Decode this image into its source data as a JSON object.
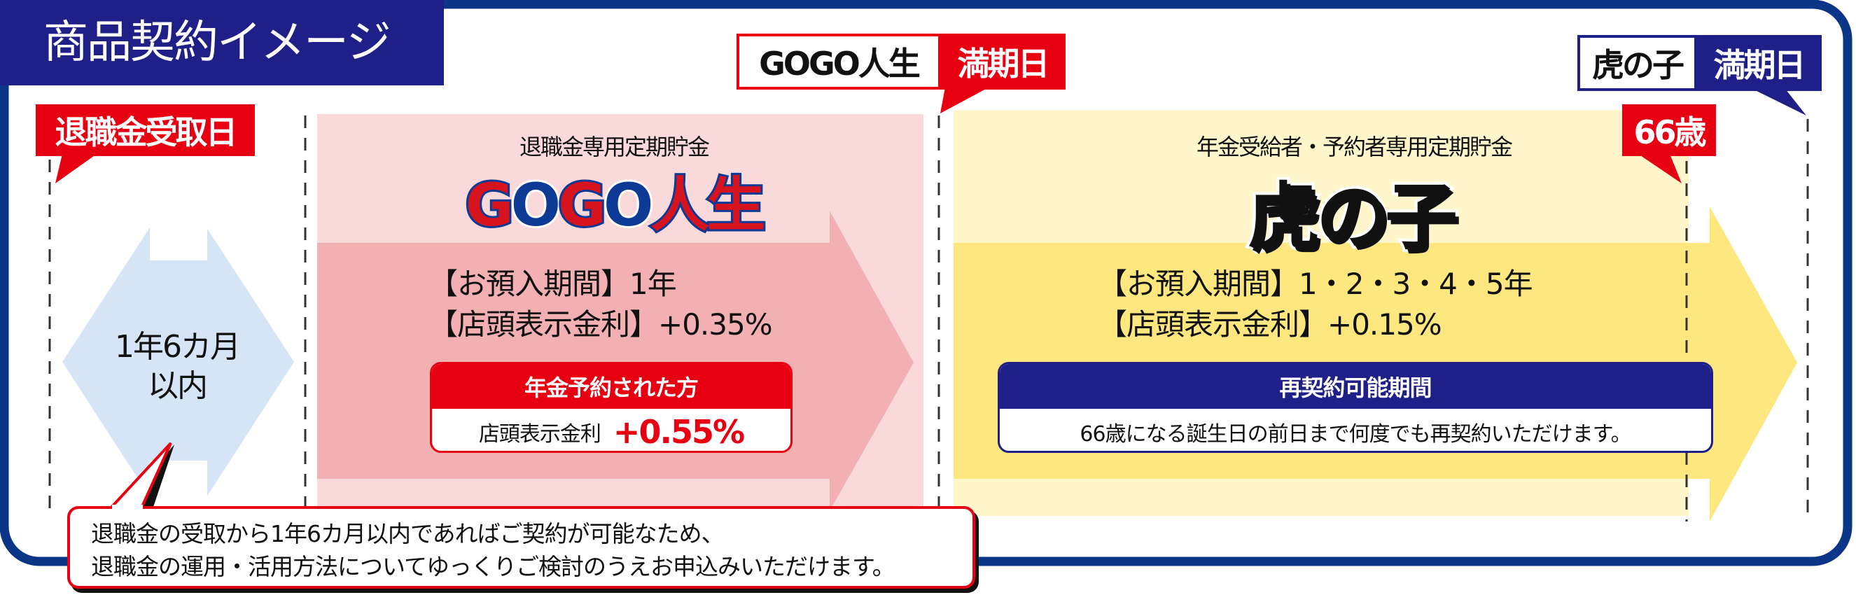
{
  "title": "商品契約イメージ",
  "colors": {
    "red": "#e60012",
    "navy": "#1e2088",
    "frame": "#0b3586",
    "pink_light": "#f9d9da",
    "pink_arrow": "#f2b0b2",
    "yellow_light": "#fff6cc",
    "yellow_arrow": "#ffe780",
    "blue_light": "#d5e5f6"
  },
  "markers": {
    "retirement_date": "退職金受取日",
    "gogo_maturity": {
      "product": "GOGO人生",
      "label": "満期日"
    },
    "tora_maturity": {
      "product": "虎の子",
      "label": "満期日"
    },
    "age_limit": "66歳"
  },
  "window": {
    "line1": "1年6カ月",
    "line2": "以内"
  },
  "gogo": {
    "subtitle": "退職金専用定期貯金",
    "logo": [
      "G",
      "O",
      "G",
      "O",
      "人生"
    ],
    "period": "【お預入期間】1年",
    "rate": "【店頭表示金利】+0.35%",
    "pension_box": {
      "header": "年金予約された方",
      "label": "店頭表示金利",
      "rate": "+0.55%"
    }
  },
  "tora": {
    "subtitle": "年金受給者・予約者専用定期貯金",
    "logo": "虎の子",
    "period": "【お預入期間】1・2・3・4・5年",
    "rate": "【店頭表示金利】+0.15%",
    "renewal_box": {
      "header": "再契約可能期間",
      "body": "66歳になる誕生日の前日まで何度でも再契約いただけます。"
    }
  },
  "note": {
    "line1": "退職金の受取から1年6カ月以内であればご契約が可能なため、",
    "line2": "退職金の運用・活用方法についてゆっくりご検討のうえお申込みいただけます。"
  }
}
